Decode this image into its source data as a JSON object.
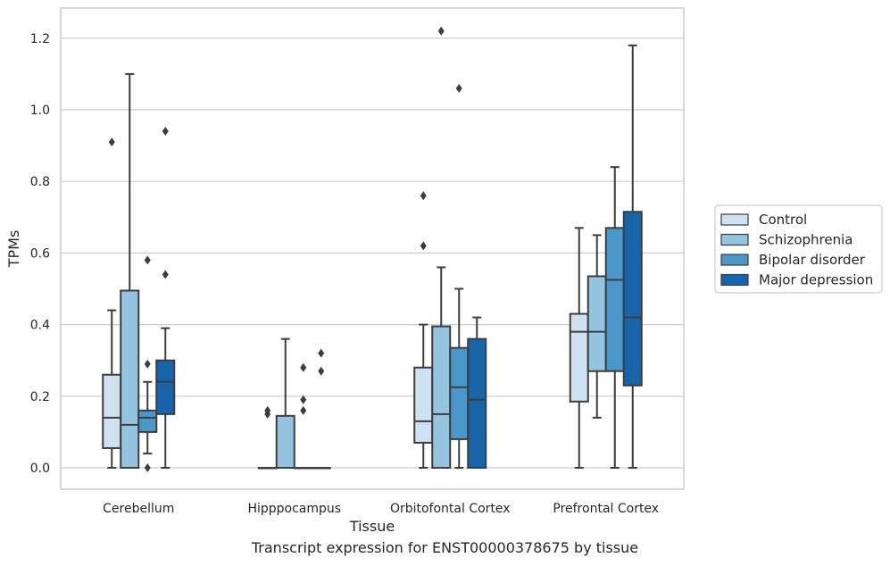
{
  "caption": "Transcript expression for ENST00000378675 by tissue",
  "chart_data": {
    "type": "boxplot",
    "xlabel": "Tissue",
    "ylabel": "TPMs",
    "ylim": [
      -0.06,
      1.28
    ],
    "yticks": [
      0.0,
      0.2,
      0.4,
      0.6,
      0.8,
      1.0,
      1.2
    ],
    "ytick_labels": [
      "0.0",
      "0.2",
      "0.4",
      "0.6",
      "0.8",
      "1.0",
      "1.2"
    ],
    "categories": [
      "Cerebellum",
      "Hipppocampus",
      "Orbitofontal Cortex",
      "Prefrontal Cortex"
    ],
    "grid": "horizontal",
    "legend_position": "right",
    "series": [
      {
        "name": "Control",
        "color": "#d0e1f2",
        "boxes": [
          {
            "whislo": 0.0,
            "q1": 0.055,
            "med": 0.14,
            "q3": 0.26,
            "whishi": 0.44,
            "fliers": [
              0.91
            ]
          },
          {
            "whislo": 0.0,
            "q1": 0.0,
            "med": 0.0,
            "q3": 0.0,
            "whishi": 0.0,
            "fliers": [
              0.15,
              0.16
            ]
          },
          {
            "whislo": 0.0,
            "q1": 0.07,
            "med": 0.13,
            "q3": 0.28,
            "whishi": 0.4,
            "fliers": [
              0.62,
              0.76
            ]
          },
          {
            "whislo": 0.0,
            "q1": 0.185,
            "med": 0.38,
            "q3": 0.43,
            "whishi": 0.67,
            "fliers": []
          }
        ]
      },
      {
        "name": "Schizophrenia",
        "color": "#94c4df",
        "boxes": [
          {
            "whislo": 0.0,
            "q1": 0.0,
            "med": 0.12,
            "q3": 0.495,
            "whishi": 1.1,
            "fliers": []
          },
          {
            "whislo": 0.0,
            "q1": 0.0,
            "med": 0.0,
            "q3": 0.145,
            "whishi": 0.36,
            "fliers": []
          },
          {
            "whislo": 0.0,
            "q1": 0.0,
            "med": 0.15,
            "q3": 0.395,
            "whishi": 0.56,
            "fliers": [
              1.22
            ]
          },
          {
            "whislo": 0.14,
            "q1": 0.27,
            "med": 0.38,
            "q3": 0.535,
            "whishi": 0.65,
            "fliers": []
          }
        ]
      },
      {
        "name": "Bipolar disorder",
        "color": "#4a98c9",
        "boxes": [
          {
            "whislo": 0.04,
            "q1": 0.1,
            "med": 0.14,
            "q3": 0.16,
            "whishi": 0.24,
            "fliers": [
              0.0,
              0.29,
              0.58
            ]
          },
          {
            "whislo": 0.0,
            "q1": 0.0,
            "med": 0.0,
            "q3": 0.0,
            "whishi": 0.0,
            "fliers": [
              0.16,
              0.19,
              0.28
            ]
          },
          {
            "whislo": 0.0,
            "q1": 0.08,
            "med": 0.225,
            "q3": 0.335,
            "whishi": 0.5,
            "fliers": [
              1.06
            ]
          },
          {
            "whislo": 0.0,
            "q1": 0.27,
            "med": 0.525,
            "q3": 0.67,
            "whishi": 0.84,
            "fliers": []
          }
        ]
      },
      {
        "name": "Major depression",
        "color": "#1764ab",
        "boxes": [
          {
            "whislo": 0.0,
            "q1": 0.15,
            "med": 0.24,
            "q3": 0.3,
            "whishi": 0.39,
            "fliers": [
              0.54,
              0.94
            ]
          },
          {
            "whislo": 0.0,
            "q1": 0.0,
            "med": 0.0,
            "q3": 0.0,
            "whishi": 0.0,
            "fliers": [
              0.27,
              0.32
            ]
          },
          {
            "whislo": 0.0,
            "q1": 0.0,
            "med": 0.19,
            "q3": 0.36,
            "whishi": 0.42,
            "fliers": []
          },
          {
            "whislo": 0.0,
            "q1": 0.23,
            "med": 0.42,
            "q3": 0.715,
            "whishi": 1.18,
            "fliers": []
          }
        ]
      }
    ]
  }
}
